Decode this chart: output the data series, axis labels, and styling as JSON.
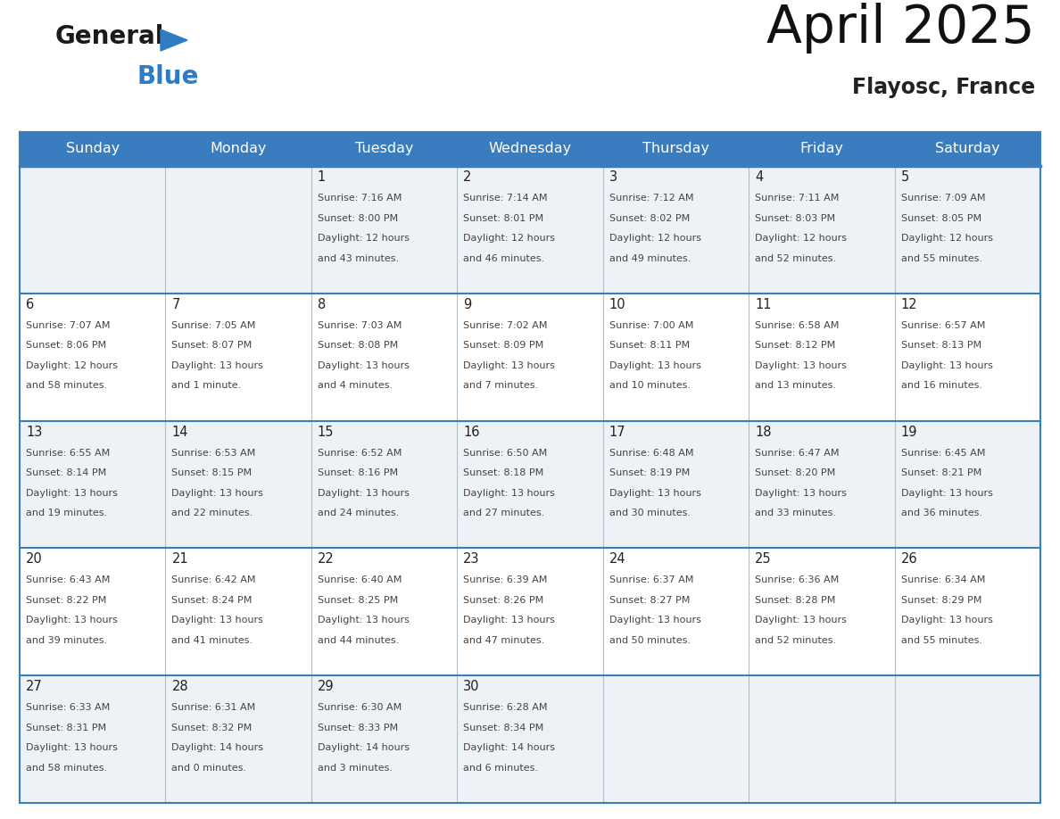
{
  "title": "April 2025",
  "subtitle": "Flayosc, France",
  "days_of_week": [
    "Sunday",
    "Monday",
    "Tuesday",
    "Wednesday",
    "Thursday",
    "Friday",
    "Saturday"
  ],
  "header_bg_color": "#3a7dbf",
  "header_text_color": "#ffffff",
  "bg_color": "#ffffff",
  "row_bg_odd": "#eef1f5",
  "row_bg_even": "#ffffff",
  "grid_color": "#3a7dbf",
  "separator_color": "#3a7dbf",
  "text_color": "#444444",
  "day_num_color": "#222222",
  "title_color": "#111111",
  "subtitle_color": "#222222",
  "weeks": [
    [
      {
        "day": null,
        "data": null
      },
      {
        "day": null,
        "data": null
      },
      {
        "day": 1,
        "data": {
          "sunrise": "7:16 AM",
          "sunset": "8:00 PM",
          "daylight_line1": "Daylight: 12 hours",
          "daylight_line2": "and 43 minutes."
        }
      },
      {
        "day": 2,
        "data": {
          "sunrise": "7:14 AM",
          "sunset": "8:01 PM",
          "daylight_line1": "Daylight: 12 hours",
          "daylight_line2": "and 46 minutes."
        }
      },
      {
        "day": 3,
        "data": {
          "sunrise": "7:12 AM",
          "sunset": "8:02 PM",
          "daylight_line1": "Daylight: 12 hours",
          "daylight_line2": "and 49 minutes."
        }
      },
      {
        "day": 4,
        "data": {
          "sunrise": "7:11 AM",
          "sunset": "8:03 PM",
          "daylight_line1": "Daylight: 12 hours",
          "daylight_line2": "and 52 minutes."
        }
      },
      {
        "day": 5,
        "data": {
          "sunrise": "7:09 AM",
          "sunset": "8:05 PM",
          "daylight_line1": "Daylight: 12 hours",
          "daylight_line2": "and 55 minutes."
        }
      }
    ],
    [
      {
        "day": 6,
        "data": {
          "sunrise": "7:07 AM",
          "sunset": "8:06 PM",
          "daylight_line1": "Daylight: 12 hours",
          "daylight_line2": "and 58 minutes."
        }
      },
      {
        "day": 7,
        "data": {
          "sunrise": "7:05 AM",
          "sunset": "8:07 PM",
          "daylight_line1": "Daylight: 13 hours",
          "daylight_line2": "and 1 minute."
        }
      },
      {
        "day": 8,
        "data": {
          "sunrise": "7:03 AM",
          "sunset": "8:08 PM",
          "daylight_line1": "Daylight: 13 hours",
          "daylight_line2": "and 4 minutes."
        }
      },
      {
        "day": 9,
        "data": {
          "sunrise": "7:02 AM",
          "sunset": "8:09 PM",
          "daylight_line1": "Daylight: 13 hours",
          "daylight_line2": "and 7 minutes."
        }
      },
      {
        "day": 10,
        "data": {
          "sunrise": "7:00 AM",
          "sunset": "8:11 PM",
          "daylight_line1": "Daylight: 13 hours",
          "daylight_line2": "and 10 minutes."
        }
      },
      {
        "day": 11,
        "data": {
          "sunrise": "6:58 AM",
          "sunset": "8:12 PM",
          "daylight_line1": "Daylight: 13 hours",
          "daylight_line2": "and 13 minutes."
        }
      },
      {
        "day": 12,
        "data": {
          "sunrise": "6:57 AM",
          "sunset": "8:13 PM",
          "daylight_line1": "Daylight: 13 hours",
          "daylight_line2": "and 16 minutes."
        }
      }
    ],
    [
      {
        "day": 13,
        "data": {
          "sunrise": "6:55 AM",
          "sunset": "8:14 PM",
          "daylight_line1": "Daylight: 13 hours",
          "daylight_line2": "and 19 minutes."
        }
      },
      {
        "day": 14,
        "data": {
          "sunrise": "6:53 AM",
          "sunset": "8:15 PM",
          "daylight_line1": "Daylight: 13 hours",
          "daylight_line2": "and 22 minutes."
        }
      },
      {
        "day": 15,
        "data": {
          "sunrise": "6:52 AM",
          "sunset": "8:16 PM",
          "daylight_line1": "Daylight: 13 hours",
          "daylight_line2": "and 24 minutes."
        }
      },
      {
        "day": 16,
        "data": {
          "sunrise": "6:50 AM",
          "sunset": "8:18 PM",
          "daylight_line1": "Daylight: 13 hours",
          "daylight_line2": "and 27 minutes."
        }
      },
      {
        "day": 17,
        "data": {
          "sunrise": "6:48 AM",
          "sunset": "8:19 PM",
          "daylight_line1": "Daylight: 13 hours",
          "daylight_line2": "and 30 minutes."
        }
      },
      {
        "day": 18,
        "data": {
          "sunrise": "6:47 AM",
          "sunset": "8:20 PM",
          "daylight_line1": "Daylight: 13 hours",
          "daylight_line2": "and 33 minutes."
        }
      },
      {
        "day": 19,
        "data": {
          "sunrise": "6:45 AM",
          "sunset": "8:21 PM",
          "daylight_line1": "Daylight: 13 hours",
          "daylight_line2": "and 36 minutes."
        }
      }
    ],
    [
      {
        "day": 20,
        "data": {
          "sunrise": "6:43 AM",
          "sunset": "8:22 PM",
          "daylight_line1": "Daylight: 13 hours",
          "daylight_line2": "and 39 minutes."
        }
      },
      {
        "day": 21,
        "data": {
          "sunrise": "6:42 AM",
          "sunset": "8:24 PM",
          "daylight_line1": "Daylight: 13 hours",
          "daylight_line2": "and 41 minutes."
        }
      },
      {
        "day": 22,
        "data": {
          "sunrise": "6:40 AM",
          "sunset": "8:25 PM",
          "daylight_line1": "Daylight: 13 hours",
          "daylight_line2": "and 44 minutes."
        }
      },
      {
        "day": 23,
        "data": {
          "sunrise": "6:39 AM",
          "sunset": "8:26 PM",
          "daylight_line1": "Daylight: 13 hours",
          "daylight_line2": "and 47 minutes."
        }
      },
      {
        "day": 24,
        "data": {
          "sunrise": "6:37 AM",
          "sunset": "8:27 PM",
          "daylight_line1": "Daylight: 13 hours",
          "daylight_line2": "and 50 minutes."
        }
      },
      {
        "day": 25,
        "data": {
          "sunrise": "6:36 AM",
          "sunset": "8:28 PM",
          "daylight_line1": "Daylight: 13 hours",
          "daylight_line2": "and 52 minutes."
        }
      },
      {
        "day": 26,
        "data": {
          "sunrise": "6:34 AM",
          "sunset": "8:29 PM",
          "daylight_line1": "Daylight: 13 hours",
          "daylight_line2": "and 55 minutes."
        }
      }
    ],
    [
      {
        "day": 27,
        "data": {
          "sunrise": "6:33 AM",
          "sunset": "8:31 PM",
          "daylight_line1": "Daylight: 13 hours",
          "daylight_line2": "and 58 minutes."
        }
      },
      {
        "day": 28,
        "data": {
          "sunrise": "6:31 AM",
          "sunset": "8:32 PM",
          "daylight_line1": "Daylight: 14 hours",
          "daylight_line2": "and 0 minutes."
        }
      },
      {
        "day": 29,
        "data": {
          "sunrise": "6:30 AM",
          "sunset": "8:33 PM",
          "daylight_line1": "Daylight: 14 hours",
          "daylight_line2": "and 3 minutes."
        }
      },
      {
        "day": 30,
        "data": {
          "sunrise": "6:28 AM",
          "sunset": "8:34 PM",
          "daylight_line1": "Daylight: 14 hours",
          "daylight_line2": "and 6 minutes."
        }
      },
      {
        "day": null,
        "data": null
      },
      {
        "day": null,
        "data": null
      },
      {
        "day": null,
        "data": null
      }
    ]
  ]
}
